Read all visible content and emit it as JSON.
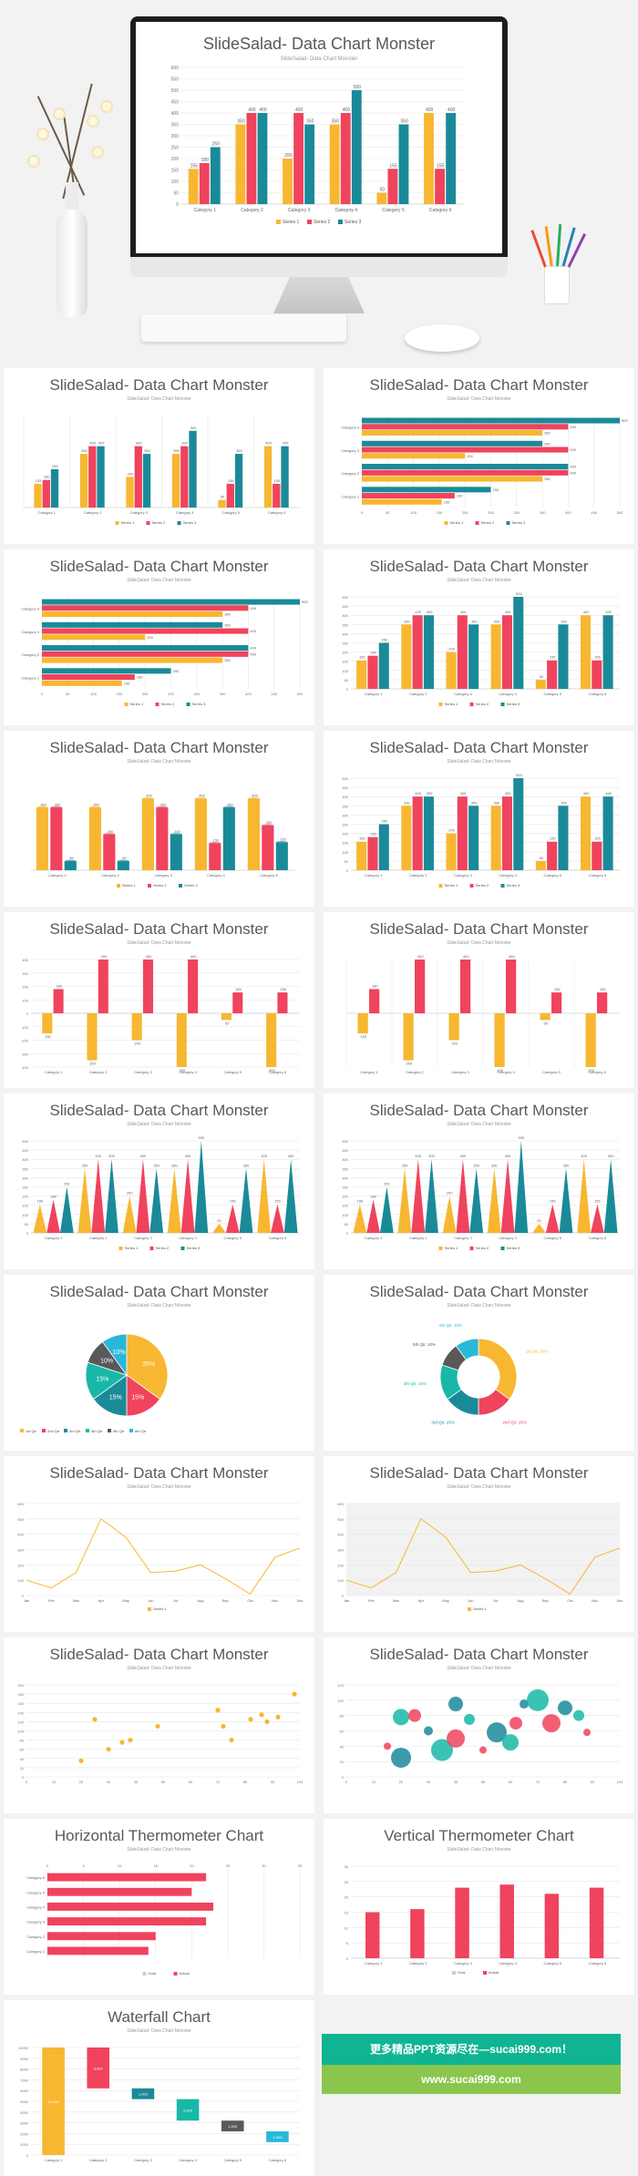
{
  "title": "SlideSalad- Data Chart Monster",
  "subtitle": "SlideSalad- Data Chart Monster",
  "colors": {
    "s1": "#f7b731",
    "s2": "#f0435d",
    "s3": "#1a8a99",
    "s4": "#595959",
    "s5": "#18b8a8",
    "s6": "#2ab8d8"
  },
  "banner": {
    "line1": "更多精品PPT资源尽在—sucai999.com！",
    "line2": "www.sucai999.com"
  },
  "chart_data": [
    {
      "type": "bar",
      "id": "hero",
      "title": "SlideSalad- Data Chart Monster",
      "subtitle": "SlideSalad- Data Chart Monster",
      "categories": [
        "Category 1",
        "Category 2",
        "Category 3",
        "Category 4",
        "Category 5",
        "Category 6"
      ],
      "series": [
        {
          "name": "Series 1",
          "values": [
            155,
            350,
            200,
            350,
            50,
            400
          ]
        },
        {
          "name": "Series 2",
          "values": [
            180,
            400,
            400,
            400,
            155,
            155
          ]
        },
        {
          "name": "Series 3",
          "values": [
            250,
            400,
            350,
            500,
            350,
            400
          ]
        }
      ],
      "ylim": [
        0,
        600
      ],
      "yticks": [
        0,
        50,
        100,
        150,
        200,
        250,
        300,
        350,
        400,
        450,
        500,
        550,
        600
      ]
    },
    {
      "type": "bar",
      "id": "p1",
      "title": "SlideSalad- Data Chart Monster",
      "subtitle": "SlideSalad- Data Chart Monster",
      "categories": [
        "Category 1",
        "Category 2",
        "Category 3",
        "Category 4",
        "Category 5",
        "Category 6"
      ],
      "series": [
        {
          "name": "Series 1",
          "values": [
            155,
            350,
            200,
            350,
            50,
            400
          ]
        },
        {
          "name": "Series 2",
          "values": [
            180,
            400,
            400,
            400,
            155,
            155
          ]
        },
        {
          "name": "Series 3",
          "values": [
            250,
            400,
            350,
            500,
            350,
            400
          ]
        }
      ],
      "ylim": [
        0,
        600
      ]
    },
    {
      "type": "hbar",
      "id": "p2",
      "title": "SlideSalad- Data Chart Monster",
      "subtitle": "SlideSalad- Data Chart Monster",
      "categories": [
        "Category 1",
        "Category 2",
        "Category 3",
        "Category 4"
      ],
      "series": [
        {
          "name": "Series 1",
          "values": [
            155,
            350,
            200,
            350
          ]
        },
        {
          "name": "Series 2",
          "values": [
            180,
            400,
            400,
            400
          ]
        },
        {
          "name": "Series 3",
          "values": [
            250,
            400,
            350,
            500
          ]
        }
      ],
      "xlim": [
        0,
        500
      ],
      "xticks": [
        0,
        50,
        100,
        150,
        200,
        250,
        300,
        350,
        400,
        450,
        500
      ]
    },
    {
      "type": "hbar",
      "id": "p3",
      "title": "SlideSalad- Data Chart Monster",
      "subtitle": "SlideSalad- Data Chart Monster",
      "categories": [
        "Category 1",
        "Category 2",
        "Category 3",
        "Category 4"
      ],
      "series": [
        {
          "name": "Series 1",
          "values": [
            155,
            350,
            200,
            350
          ]
        },
        {
          "name": "Series 2",
          "values": [
            180,
            400,
            400,
            400
          ]
        },
        {
          "name": "Series 3",
          "values": [
            250,
            400,
            350,
            500
          ]
        }
      ],
      "xlim": [
        0,
        500
      ],
      "xticks": [
        0,
        50,
        100,
        150,
        200,
        250,
        300,
        350,
        400,
        450,
        500
      ]
    },
    {
      "type": "bar",
      "id": "p4",
      "title": "SlideSalad- Data Chart Monster",
      "subtitle": "SlideSalad- Data Chart Monster",
      "categories": [
        "Category 1",
        "Category 2",
        "Category 3",
        "Category 4",
        "Category 5",
        "Category 6"
      ],
      "series": [
        {
          "name": "Series 1",
          "values": [
            155,
            350,
            200,
            350,
            50,
            400
          ]
        },
        {
          "name": "Series 2",
          "values": [
            180,
            400,
            400,
            400,
            155,
            155
          ]
        },
        {
          "name": "Series 3",
          "values": [
            250,
            400,
            350,
            500,
            350,
            400
          ]
        }
      ],
      "ylim": [
        0,
        500
      ],
      "yticks": [
        0,
        50,
        100,
        150,
        200,
        250,
        300,
        350,
        400,
        450,
        500
      ]
    },
    {
      "type": "bar",
      "id": "p5",
      "title": "SlideSalad- Data Chart Monster",
      "subtitle": "SlideSalad- Data Chart Monster",
      "categories": [
        "Category 1",
        "Category 2",
        "Category 3",
        "Category 4",
        "Category 5"
      ],
      "series": [
        {
          "name": "Series 1",
          "values": [
            350,
            350,
            400,
            400,
            400
          ]
        },
        {
          "name": "Series 2",
          "values": [
            350,
            200,
            350,
            150,
            250
          ]
        },
        {
          "name": "Series 3",
          "values": [
            50,
            50,
            200,
            350,
            155
          ]
        }
      ],
      "ylim": [
        0,
        500
      ]
    },
    {
      "type": "bar",
      "id": "p6",
      "title": "SlideSalad- Data Chart Monster",
      "subtitle": "SlideSalad- Data Chart Monster",
      "categories": [
        "Category 1",
        "Category 2",
        "Category 3",
        "Category 4",
        "Category 5",
        "Category 6"
      ],
      "series": [
        {
          "name": "Series 1",
          "values": [
            155,
            350,
            200,
            350,
            50,
            400
          ]
        },
        {
          "name": "Series 2",
          "values": [
            180,
            400,
            400,
            400,
            155,
            155
          ]
        },
        {
          "name": "Series 3",
          "values": [
            250,
            400,
            350,
            500,
            350,
            400
          ]
        }
      ],
      "ylim": [
        0,
        500
      ],
      "yticks": [
        0,
        50,
        100,
        150,
        200,
        250,
        300,
        350,
        400,
        450,
        500
      ]
    },
    {
      "type": "bar",
      "id": "p7",
      "title": "SlideSalad- Data Chart Monster",
      "subtitle": "SlideSalad- Data Chart Monster",
      "categories": [
        "Category 1",
        "Category 2",
        "Category 3",
        "Category 4",
        "Category 5",
        "Category 6"
      ],
      "series": [
        {
          "name": "Series 1",
          "values": [
            -150,
            -350,
            -200,
            -400,
            -50,
            -400
          ]
        },
        {
          "name": "Series 2",
          "values": [
            180,
            400,
            400,
            400,
            155,
            155
          ]
        }
      ],
      "ylim": [
        -400,
        400
      ],
      "yticks": [
        -400,
        -300,
        -200,
        -100,
        0,
        100,
        200,
        300,
        400
      ]
    },
    {
      "type": "bar",
      "id": "p8",
      "title": "SlideSalad- Data Chart Monster",
      "subtitle": "SlideSalad- Data Chart Monster",
      "categories": [
        "Category 1",
        "Category 2",
        "Category 3",
        "Category 4",
        "Category 5",
        "Category 6"
      ],
      "series": [
        {
          "name": "Series 1",
          "values": [
            -150,
            -350,
            -200,
            -400,
            -50,
            -400
          ]
        },
        {
          "name": "Series 2",
          "values": [
            180,
            400,
            400,
            400,
            155,
            155
          ]
        }
      ],
      "ylim": [
        -400,
        400
      ]
    },
    {
      "type": "bar",
      "id": "p9",
      "title": "SlideSalad- Data Chart Monster",
      "subtitle": "SlideSalad- Data Chart Monster",
      "categories": [
        "Category 1",
        "Category 2",
        "Category 3",
        "Category 4",
        "Category 5",
        "Category 6"
      ],
      "series": [
        {
          "name": "Series 1",
          "values": [
            155,
            350,
            200,
            350,
            50,
            400
          ]
        },
        {
          "name": "Series 2",
          "values": [
            180,
            400,
            400,
            400,
            155,
            155
          ]
        },
        {
          "name": "Series 3",
          "values": [
            250,
            400,
            350,
            500,
            350,
            400
          ]
        }
      ],
      "ylim": [
        0,
        500
      ],
      "yticks": [
        0,
        50,
        100,
        150,
        200,
        250,
        300,
        350,
        400,
        450,
        500
      ]
    },
    {
      "type": "bar",
      "id": "p10",
      "title": "SlideSalad- Data Chart Monster",
      "subtitle": "SlideSalad- Data Chart Monster",
      "categories": [
        "Category 1",
        "Category 2",
        "Category 3",
        "Category 4",
        "Category 5",
        "Category 6"
      ],
      "series": [
        {
          "name": "Series 1",
          "values": [
            155,
            350,
            200,
            350,
            50,
            400
          ]
        },
        {
          "name": "Series 2",
          "values": [
            180,
            400,
            400,
            400,
            155,
            155
          ]
        },
        {
          "name": "Series 3",
          "values": [
            250,
            400,
            350,
            500,
            350,
            400
          ]
        }
      ],
      "ylim": [
        0,
        500
      ],
      "yticks": [
        0,
        50,
        100,
        150,
        200,
        250,
        300,
        350,
        400,
        450,
        500
      ]
    },
    {
      "type": "pie",
      "id": "p11",
      "title": "SlideSalad- Data Chart Monster",
      "subtitle": "SlideSalad- Data Chart Monster",
      "labels": [
        "1st Qtr",
        "2nd Qtr",
        "3rd Qtr",
        "4th Qtr",
        "5th Qtr",
        "6th Qtr"
      ],
      "values": [
        35,
        15,
        15,
        15,
        10,
        10
      ],
      "value_labels": [
        "35%",
        "15%",
        "15%",
        "15%",
        "10%",
        "10%"
      ]
    },
    {
      "type": "pie",
      "id": "p12",
      "title": "SlideSalad- Data Chart Monster",
      "subtitle": "SlideSalad- Data Chart Monster",
      "labels": [
        "1st Qtr",
        "2nd Qtr",
        "3rd Qtr",
        "4th Qtr",
        "5th Qtr",
        "6th Qtr"
      ],
      "values": [
        35,
        15,
        15,
        15,
        10,
        10
      ],
      "value_labels": [
        "1st Qtr, 35%",
        "2nd Qtr, 15%",
        "3rd Qtr, 15%",
        "4th Qtr, 15%",
        "5th Qtr, 10%",
        "6th Qtr, 10%"
      ]
    },
    {
      "type": "line",
      "id": "p13",
      "title": "SlideSalad- Data Chart Monster",
      "subtitle": "SlideSalad- Data Chart Monster",
      "categories": [
        "Jan",
        "Feb",
        "Mar",
        "Apr",
        "May",
        "Jun",
        "Jul",
        "Aug",
        "Sep",
        "Oct",
        "Nov",
        "Dec"
      ],
      "series": [
        {
          "name": "Series 1",
          "values": [
            100,
            50,
            150,
            500,
            380,
            150,
            160,
            200,
            110,
            10,
            250,
            310
          ]
        }
      ],
      "ylim": [
        0,
        600
      ],
      "yticks": [
        0,
        100,
        200,
        300,
        400,
        500,
        600
      ]
    },
    {
      "type": "line",
      "id": "p14",
      "title": "SlideSalad- Data Chart Monster",
      "subtitle": "SlideSalad- Data Chart Monster",
      "categories": [
        "Jan",
        "Feb",
        "Mar",
        "Apr",
        "May",
        "Jun",
        "Jul",
        "Aug",
        "Sep",
        "Oct",
        "Nov",
        "Dec"
      ],
      "series": [
        {
          "name": "Series 1",
          "values": [
            100,
            50,
            150,
            500,
            380,
            150,
            160,
            200,
            110,
            10,
            250,
            310
          ]
        }
      ],
      "ylim": [
        0,
        600
      ],
      "yticks": [
        0,
        100,
        200,
        300,
        400,
        500,
        600
      ]
    },
    {
      "type": "scatter",
      "id": "p15",
      "title": "SlideSalad- Data Chart Monster",
      "subtitle": "SlideSalad- Data Chart Monster",
      "points": [
        [
          20,
          35
        ],
        [
          25,
          125
        ],
        [
          30,
          60
        ],
        [
          35,
          75
        ],
        [
          38,
          80
        ],
        [
          48,
          110
        ],
        [
          70,
          145
        ],
        [
          72,
          110
        ],
        [
          75,
          80
        ],
        [
          82,
          125
        ],
        [
          86,
          135
        ],
        [
          88,
          120
        ],
        [
          92,
          130
        ],
        [
          98,
          180
        ]
      ],
      "xlim": [
        0,
        100
      ],
      "ylim": [
        0,
        200
      ],
      "xticks": [
        0,
        10,
        20,
        30,
        40,
        50,
        60,
        70,
        80,
        90,
        100
      ],
      "yticks": [
        0,
        20,
        40,
        60,
        80,
        100,
        120,
        140,
        160,
        180,
        200
      ]
    },
    {
      "type": "scatter",
      "id": "p16",
      "title": "SlideSalad- Data Chart Monster",
      "subtitle": "SlideSalad- Data Chart Monster",
      "points": [
        [
          15,
          40
        ],
        [
          20,
          25
        ],
        [
          20,
          78
        ],
        [
          25,
          80
        ],
        [
          30,
          60
        ],
        [
          35,
          35
        ],
        [
          40,
          50
        ],
        [
          40,
          95
        ],
        [
          45,
          75
        ],
        [
          50,
          35
        ],
        [
          55,
          58
        ],
        [
          60,
          45
        ],
        [
          62,
          70
        ],
        [
          65,
          95
        ],
        [
          70,
          100
        ],
        [
          75,
          70
        ],
        [
          80,
          90
        ],
        [
          85,
          80
        ],
        [
          88,
          58
        ]
      ],
      "xlim": [
        0,
        100
      ],
      "ylim": [
        0,
        120
      ],
      "xticks": [
        0,
        10,
        20,
        30,
        40,
        50,
        60,
        70,
        80,
        90,
        100
      ],
      "yticks": [
        0,
        20,
        40,
        60,
        80,
        100,
        120
      ]
    },
    {
      "type": "hbar",
      "id": "p17",
      "title": "Horizontal Thermometer Chart",
      "subtitle": "SlideSalad- Data Chart Monster",
      "categories": [
        "Category 1",
        "Category 2",
        "Category 3",
        "Category 4",
        "Category 5",
        "Category 6"
      ],
      "series": [
        {
          "name": "Goal",
          "values": [
            30,
            30,
            30,
            30,
            30,
            30
          ]
        },
        {
          "name": "Actual",
          "values": [
            14,
            15,
            22,
            23,
            20,
            22
          ]
        }
      ],
      "xlim": [
        0,
        35
      ],
      "xticks": [
        0,
        5,
        10,
        15,
        20,
        25,
        30,
        35
      ]
    },
    {
      "type": "bar",
      "id": "p18",
      "title": "Vertical Thermometer Chart",
      "subtitle": "SlideSalad- Data Chart Monster",
      "categories": [
        "Category 1",
        "Category 2",
        "Category 3",
        "Category 4",
        "Category 5",
        "Category 6"
      ],
      "series": [
        {
          "name": "Goal",
          "values": [
            30,
            30,
            30,
            30,
            30,
            30
          ]
        },
        {
          "name": "Actual",
          "values": [
            15,
            16,
            23,
            24,
            21,
            23
          ]
        }
      ],
      "ylim": [
        0,
        30
      ],
      "yticks": [
        0,
        5,
        10,
        15,
        20,
        25,
        30
      ]
    },
    {
      "type": "bar",
      "id": "p19",
      "title": "Waterfall Chart",
      "subtitle": "SlideSalad- Data Chart Monster",
      "categories": [
        "Category 1",
        "Category 2",
        "Category 3",
        "Category 4",
        "Category 5",
        "Category 6"
      ],
      "values": [
        10000,
        -3800,
        -1000,
        -2000,
        -1000,
        -1000
      ],
      "value_labels": [
        "10,000",
        "3,800",
        "1,000",
        "2,000",
        "1,000",
        "1,000"
      ],
      "ylim": [
        0,
        10000
      ],
      "yticks": [
        0,
        1000,
        2000,
        3000,
        4000,
        5000,
        6000,
        7000,
        8000,
        9000,
        10000
      ]
    }
  ]
}
